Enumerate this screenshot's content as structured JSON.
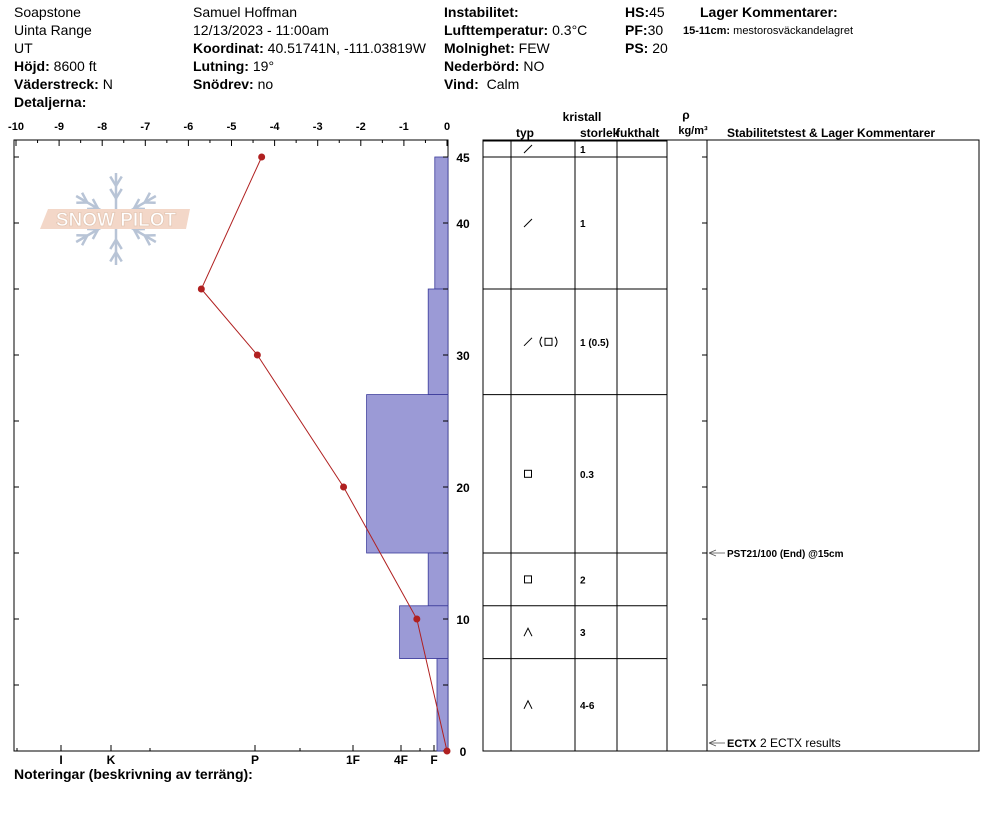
{
  "header": {
    "location": "Soapstone",
    "range": "Uinta Range",
    "state": "UT",
    "elevation_label": "Höjd:",
    "elevation_value": "8600 ft",
    "aspect_label": "Väderstreck:",
    "aspect_value": "N",
    "details_label": "Detaljerna:",
    "observer": "Samuel Hoffman",
    "datetime": "12/13/2023 - 11:00am",
    "coord_label": "Koordinat:",
    "coord_value": "40.51741N, -111.03819W",
    "slope_label": "Lutning:",
    "slope_value": "19°",
    "wind_loading_label": "Snödrev:",
    "wind_loading_value": "no",
    "instability_label": "Instabilitet:",
    "air_temp_label": "Lufttemperatur:",
    "air_temp_value": "0.3°C",
    "sky_label": "Molnighet:",
    "sky_value": "FEW",
    "precip_label": "Nederbörd:",
    "precip_value": "NO",
    "wind_label": "Vind:",
    "wind_value": "Calm",
    "hs_label": "HS:",
    "hs_value": "45",
    "pf_label": "PF:",
    "pf_value": "30",
    "ps_label": "PS:",
    "ps_value": "20",
    "layer_comments_label": "Lager Kommentarer:",
    "layer_comment_range": "15-11cm:",
    "layer_comment_text": "mestorosväckandelagret"
  },
  "footer": {
    "notes_label": "Noteringar (beskrivning av terräng):"
  },
  "logo_text": "SNOW PILOT",
  "table_headers": {
    "type": "typ",
    "crystal": "kristall",
    "size": "storlek",
    "moisture": "fukthalt",
    "rho": "ρ",
    "density_unit": "kg/m³",
    "stability": "Stabilitetstest & Lager Kommentarer"
  },
  "colors": {
    "hardness_fill": "#9b9ad6",
    "hardness_stroke": "#3a3a9a",
    "temp_line": "#b02020",
    "axis": "#000000"
  },
  "chart_data": {
    "type": "snow-profile",
    "temperature_axis": {
      "range": [
        -10,
        0
      ],
      "ticks": [
        "-10",
        "-9",
        "-8",
        "-7",
        "-6",
        "-5",
        "-4",
        "-3",
        "-2",
        "-1",
        "0"
      ]
    },
    "depth_axis": {
      "range": [
        0,
        45
      ],
      "labels": [
        "0",
        "10",
        "20",
        "30",
        "40",
        "45"
      ]
    },
    "hardness_axis": {
      "labels": [
        "I",
        "K",
        "P",
        "1F",
        "4F",
        "F"
      ]
    },
    "temperature_profile": [
      {
        "depth": 45,
        "temp": -4.3
      },
      {
        "depth": 35,
        "temp": -5.7
      },
      {
        "depth": 30,
        "temp": -4.4
      },
      {
        "depth": 20,
        "temp": -2.4
      },
      {
        "depth": 10,
        "temp": -0.7
      },
      {
        "depth": 0,
        "temp": 0
      }
    ],
    "layers": [
      {
        "top": 45,
        "bottom": 35,
        "hardness": 0.3,
        "grain": "precipitation-particles",
        "size": "1"
      },
      {
        "top": 35,
        "bottom": 27,
        "hardness": 0.45,
        "grain": "precipitation-particles-and-faceted",
        "size": "1 (0.5)"
      },
      {
        "top": 27,
        "bottom": 15,
        "hardness": 1.85,
        "grain": "faceted",
        "size": "0.3"
      },
      {
        "top": 15,
        "bottom": 11,
        "hardness": 0.45,
        "grain": "faceted",
        "size": "2"
      },
      {
        "top": 11,
        "bottom": 7,
        "hardness": 1.1,
        "grain": "depth-hoar",
        "size": "3"
      },
      {
        "top": 7,
        "bottom": 0,
        "hardness": 0.25,
        "grain": "depth-hoar",
        "size": "4-6"
      }
    ],
    "top_row": {
      "grain": "precipitation-particles",
      "size": "1"
    },
    "stability_tests": [
      {
        "depth": 15,
        "text": "PST21/100 (End) @15cm"
      },
      {
        "depth": 0,
        "label": "ECTX",
        "text": "2 ECTX results"
      }
    ]
  }
}
